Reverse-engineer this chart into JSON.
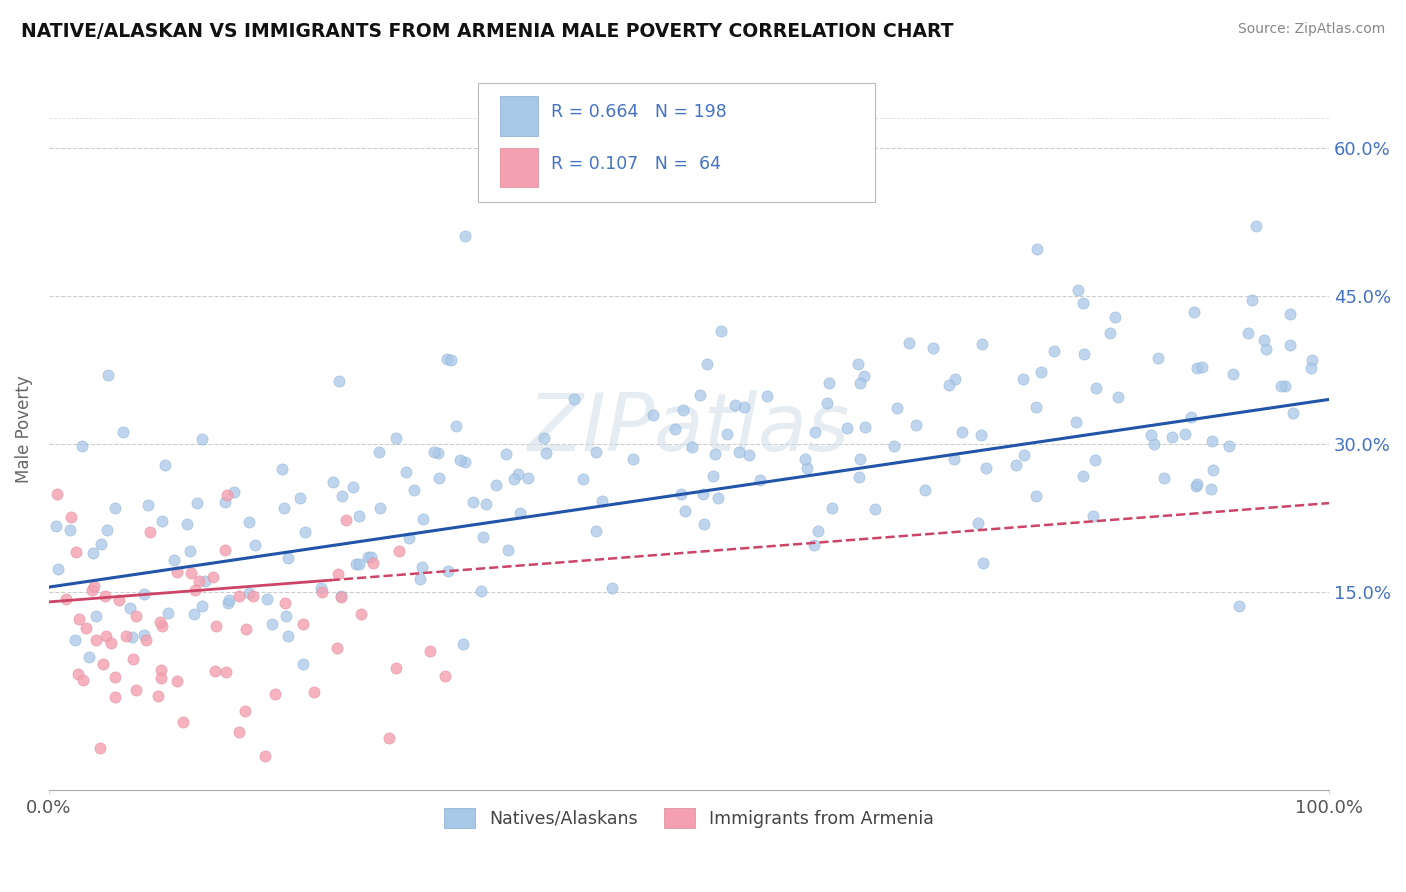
{
  "title": "NATIVE/ALASKAN VS IMMIGRANTS FROM ARMENIA MALE POVERTY CORRELATION CHART",
  "source": "Source: ZipAtlas.com",
  "ylabel": "Male Poverty",
  "xlim": [
    0,
    1.0
  ],
  "ylim": [
    -0.05,
    0.68
  ],
  "xtick_labels": [
    "0.0%",
    "100.0%"
  ],
  "ytick_labels": [
    "15.0%",
    "30.0%",
    "45.0%",
    "60.0%"
  ],
  "ytick_values": [
    0.15,
    0.3,
    0.45,
    0.6
  ],
  "blue_scatter": "#a8c8e8",
  "pink_scatter": "#f4a0b0",
  "blue_line_color": "#2255aa",
  "pink_line_color": "#cc4466",
  "watermark": "ZIPatlas",
  "legend_label_blue": "Natives/Alaskans",
  "legend_label_pink": "Immigrants from Armenia",
  "background_color": "#ffffff",
  "N_blue": 198,
  "N_pink": 64,
  "R_blue": 0.664,
  "R_pink": 0.107,
  "blue_line_y0": 0.155,
  "blue_line_y1": 0.345,
  "pink_line_y0": 0.14,
  "pink_line_y1": 0.24
}
